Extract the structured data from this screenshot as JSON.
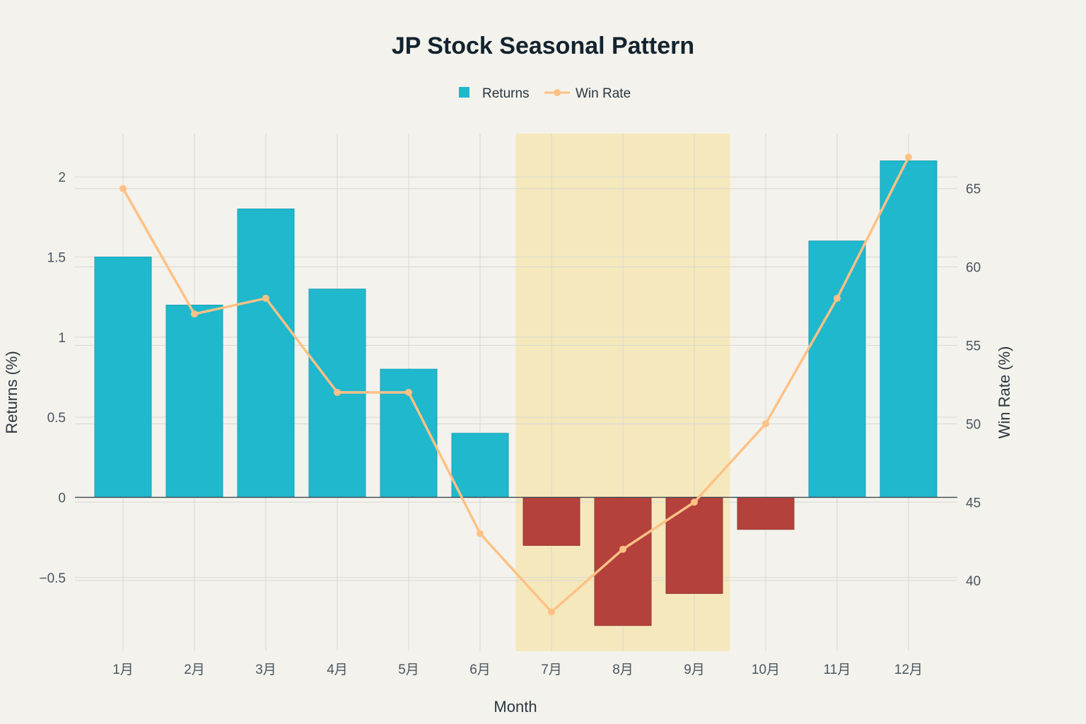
{
  "chart_data": {
    "type": "bar",
    "title": "JP Stock Seasonal Pattern",
    "categories": [
      "1月",
      "2月",
      "3月",
      "4月",
      "5月",
      "6月",
      "7月",
      "8月",
      "9月",
      "10月",
      "11月",
      "12月"
    ],
    "series": [
      {
        "name": "Returns",
        "type": "bar",
        "axis": "left",
        "values": [
          1.5,
          1.2,
          1.8,
          1.3,
          0.8,
          0.4,
          -0.3,
          -0.8,
          -0.6,
          -0.2,
          1.6,
          2.1
        ]
      },
      {
        "name": "Win Rate",
        "type": "line",
        "axis": "right",
        "values": [
          65,
          57,
          58,
          52,
          52,
          43,
          38,
          42,
          45,
          50,
          58,
          67
        ]
      }
    ],
    "xlabel": "Month",
    "ylabel": "Returns (%)",
    "y2label": "Win Rate (%)",
    "ylim": [
      -0.96,
      2.27
    ],
    "y2lim": [
      35.5,
      68.5
    ],
    "yticks": [
      {
        "value": -0.5,
        "label": "−0.5"
      },
      {
        "value": 0,
        "label": "0"
      },
      {
        "value": 0.5,
        "label": "0.5"
      },
      {
        "value": 1,
        "label": "1"
      },
      {
        "value": 1.5,
        "label": "1.5"
      },
      {
        "value": 2,
        "label": "2"
      }
    ],
    "y2ticks": [
      {
        "value": 40,
        "label": "40"
      },
      {
        "value": 45,
        "label": "45"
      },
      {
        "value": 50,
        "label": "50"
      },
      {
        "value": 55,
        "label": "55"
      },
      {
        "value": 60,
        "label": "60"
      },
      {
        "value": 65,
        "label": "65"
      }
    ],
    "highlight_range": [
      "7月",
      "9月"
    ],
    "grid": true,
    "legend_position": "top-center",
    "colors": {
      "positive_bar": "#1fb8cd",
      "negative_bar": "#b4413c",
      "line": "#ffc185",
      "highlight": "#f5e8bd",
      "grid": "#d9d8d2",
      "background": "#f3f2ec"
    }
  }
}
